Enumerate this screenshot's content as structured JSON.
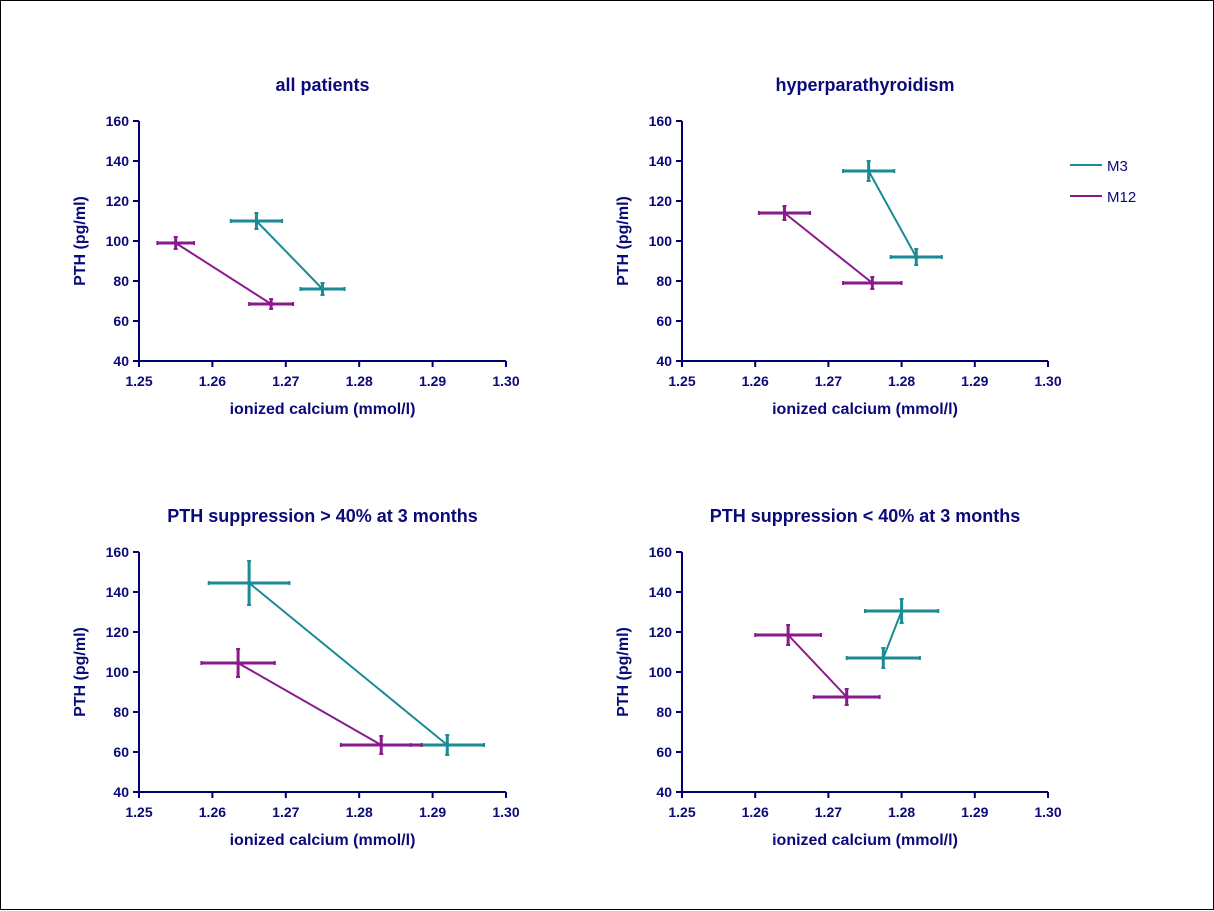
{
  "colors": {
    "M3": "#1a8a94",
    "M12": "#8a1a8c",
    "axis": "#00006e",
    "text": "#0a0a78"
  },
  "legend": {
    "placement": "top-right",
    "items": [
      "M3",
      "M12"
    ]
  },
  "chart_data": [
    {
      "type": "line",
      "title": "all patients",
      "xlabel": "ionized calcium (mmol/l)",
      "ylabel": "PTH (pg/ml)",
      "xlim": [
        1.25,
        1.3
      ],
      "ylim": [
        40,
        160
      ],
      "xticks": [
        "1.25",
        "1.26",
        "1.27",
        "1.28",
        "1.29",
        "1.30"
      ],
      "yticks": [
        "40",
        "60",
        "80",
        "100",
        "120",
        "140",
        "160"
      ],
      "series": [
        {
          "name": "M3",
          "color_key": "M3",
          "points": [
            {
              "x": 1.266,
              "y": 110,
              "xerr": 0.0035,
              "yerr": 4
            },
            {
              "x": 1.275,
              "y": 76,
              "xerr": 0.003,
              "yerr": 3
            }
          ]
        },
        {
          "name": "M12",
          "color_key": "M12",
          "points": [
            {
              "x": 1.255,
              "y": 99,
              "xerr": 0.0025,
              "yerr": 3
            },
            {
              "x": 1.268,
              "y": 68.5,
              "xerr": 0.003,
              "yerr": 2.5
            }
          ]
        }
      ]
    },
    {
      "type": "line",
      "title": "hyperparathyroidism",
      "xlabel": "ionized calcium (mmol/l)",
      "ylabel": "PTH (pg/ml)",
      "xlim": [
        1.25,
        1.3
      ],
      "ylim": [
        40,
        160
      ],
      "xticks": [
        "1.25",
        "1.26",
        "1.27",
        "1.28",
        "1.29",
        "1.30"
      ],
      "yticks": [
        "40",
        "60",
        "80",
        "100",
        "120",
        "140",
        "160"
      ],
      "series": [
        {
          "name": "M3",
          "color_key": "M3",
          "points": [
            {
              "x": 1.2755,
              "y": 135,
              "xerr": 0.0035,
              "yerr": 5
            },
            {
              "x": 1.282,
              "y": 92,
              "xerr": 0.0035,
              "yerr": 4
            }
          ]
        },
        {
          "name": "M12",
          "color_key": "M12",
          "points": [
            {
              "x": 1.264,
              "y": 114,
              "xerr": 0.0035,
              "yerr": 3.5
            },
            {
              "x": 1.276,
              "y": 79,
              "xerr": 0.004,
              "yerr": 3
            }
          ]
        }
      ]
    },
    {
      "type": "line",
      "title": "PTH suppression > 40% at 3 months",
      "xlabel": "ionized calcium (mmol/l)",
      "ylabel": "PTH (pg/ml)",
      "xlim": [
        1.25,
        1.3
      ],
      "ylim": [
        40,
        160
      ],
      "xticks": [
        "1.25",
        "1.26",
        "1.27",
        "1.28",
        "1.29",
        "1.30"
      ],
      "yticks": [
        "40",
        "60",
        "80",
        "100",
        "120",
        "140",
        "160"
      ],
      "series": [
        {
          "name": "M3",
          "color_key": "M3",
          "points": [
            {
              "x": 1.265,
              "y": 144.5,
              "xerr": 0.0055,
              "yerr": 11
            },
            {
              "x": 1.292,
              "y": 63.5,
              "xerr": 0.005,
              "yerr": 5
            }
          ]
        },
        {
          "name": "M12",
          "color_key": "M12",
          "points": [
            {
              "x": 1.2635,
              "y": 104.5,
              "xerr": 0.005,
              "yerr": 7
            },
            {
              "x": 1.283,
              "y": 63.5,
              "xerr": 0.0055,
              "yerr": 4.5
            }
          ]
        }
      ]
    },
    {
      "type": "line",
      "title": "PTH suppression < 40% at 3 months",
      "xlabel": "ionized calcium (mmol/l)",
      "ylabel": "PTH (pg/ml)",
      "xlim": [
        1.25,
        1.3
      ],
      "ylim": [
        40,
        160
      ],
      "xticks": [
        "1.25",
        "1.26",
        "1.27",
        "1.28",
        "1.29",
        "1.30"
      ],
      "yticks": [
        "40",
        "60",
        "80",
        "100",
        "120",
        "140",
        "160"
      ],
      "series": [
        {
          "name": "M3",
          "color_key": "M3",
          "points": [
            {
              "x": 1.2775,
              "y": 107,
              "xerr": 0.005,
              "yerr": 5
            },
            {
              "x": 1.28,
              "y": 130.5,
              "xerr": 0.005,
              "yerr": 6
            }
          ]
        },
        {
          "name": "M12",
          "color_key": "M12",
          "points": [
            {
              "x": 1.2645,
              "y": 118.5,
              "xerr": 0.0045,
              "yerr": 5
            },
            {
              "x": 1.2725,
              "y": 87.5,
              "xerr": 0.0045,
              "yerr": 4
            }
          ]
        }
      ]
    }
  ]
}
